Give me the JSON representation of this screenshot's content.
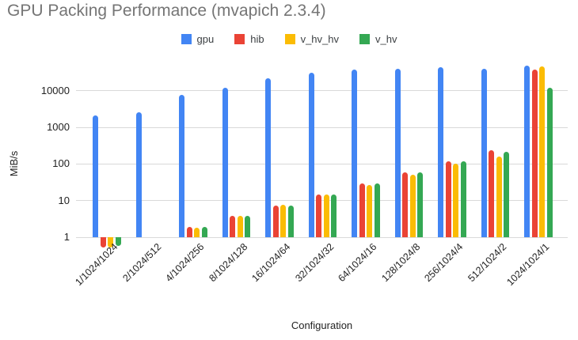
{
  "title": "GPU Packing Performance (mvapich 2.3.4)",
  "chart_data": {
    "type": "bar",
    "title": "GPU Packing Performance (mvapich 2.3.4)",
    "xlabel": "Configuration",
    "ylabel": "MiB/s",
    "y_scale": "log",
    "baseline": 1,
    "y_ticks": [
      "1",
      "10",
      "100",
      "1000",
      "10000"
    ],
    "ylim": [
      0.4,
      100000
    ],
    "grid": true,
    "legend_position": "top",
    "categories": [
      "1/1024/1024",
      "2/1024/512",
      "4/1024/256",
      "8/1024/128",
      "16/1024/64",
      "32/1024/32",
      "64/1024/16",
      "128/1024/8",
      "256/1024/4",
      "512/1024/2",
      "1024/1024/1"
    ],
    "series": [
      {
        "name": "gpu",
        "color": "#4285F4",
        "values": [
          2100,
          2600,
          7800,
          12000,
          22000,
          31000,
          37000,
          40000,
          43000,
          40000,
          48000
        ]
      },
      {
        "name": "hib",
        "color": "#EA4335",
        "values": [
          0.53,
          null,
          1.9,
          3.8,
          7.4,
          15,
          29,
          60,
          120,
          240,
          37000
        ]
      },
      {
        "name": "v_hv_hv",
        "color": "#FBBC04",
        "values": [
          0.52,
          null,
          1.8,
          3.8,
          7.5,
          14.5,
          27,
          52,
          100,
          160,
          47000
        ]
      },
      {
        "name": "v_hv",
        "color": "#34A853",
        "values": [
          0.57,
          null,
          1.9,
          3.9,
          7.4,
          15,
          30,
          60,
          120,
          220,
          12000
        ]
      }
    ]
  },
  "colors": {
    "title_text": "#757575",
    "axis_text": "#222222",
    "legend_text": "#3c4043",
    "gridline": "#d9d9d9",
    "background": "#ffffff"
  }
}
